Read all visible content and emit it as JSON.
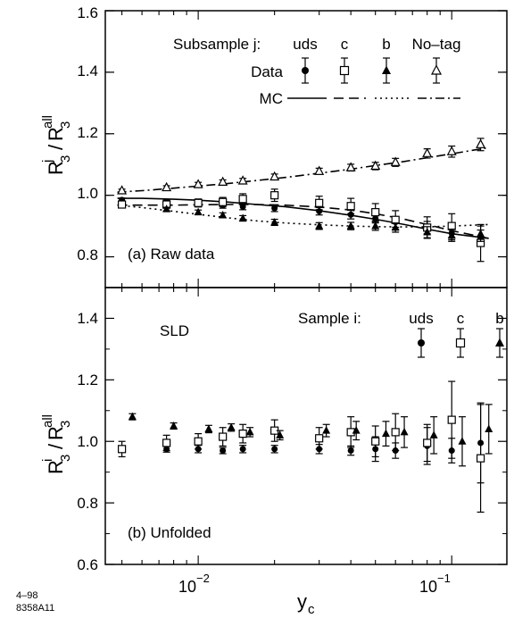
{
  "page": {
    "figure_id_line1": "4–98",
    "figure_id_line2": "8358A11"
  },
  "chart_data": [
    {
      "type": "scatter",
      "panel_label": "(a)  Raw data",
      "ylabel_main": "R",
      "ylabel_num_sup": "j",
      "ylabel_num_sub": "3",
      "ylabel_den_sup": "all",
      "ylabel_den_sub": "3",
      "xscale": "log",
      "xlim": [
        0.0043,
        0.165
      ],
      "ylim": [
        0.7,
        1.6
      ],
      "y_ticks": [
        "0.8",
        "1.0",
        "1.2",
        "1.4",
        "1.6"
      ],
      "legend": {
        "header": "Subsample j:",
        "columns": [
          "uds",
          "c",
          "b",
          "No–tag"
        ],
        "data_label": "Data",
        "mc_label": "MC"
      },
      "series": [
        {
          "name": "uds",
          "marker": "filled-circle",
          "x": [
            0.005,
            0.0075,
            0.01,
            0.0125,
            0.015,
            0.02,
            0.03,
            0.04,
            0.05,
            0.06,
            0.08,
            0.1,
            0.13
          ],
          "y": [
            0.985,
            0.978,
            0.975,
            0.967,
            0.963,
            0.958,
            0.948,
            0.937,
            0.925,
            0.913,
            0.895,
            0.877,
            0.862
          ],
          "err": [
            0.006,
            0.007,
            0.008,
            0.009,
            0.01,
            0.011,
            0.012,
            0.014,
            0.015,
            0.017,
            0.02,
            0.022,
            0.025
          ]
        },
        {
          "name": "c",
          "marker": "open-square",
          "x": [
            0.005,
            0.0075,
            0.01,
            0.0125,
            0.015,
            0.02,
            0.03,
            0.04,
            0.05,
            0.06,
            0.08,
            0.1,
            0.13
          ],
          "y": [
            0.97,
            0.97,
            0.975,
            0.978,
            0.988,
            1.0,
            0.975,
            0.965,
            0.945,
            0.92,
            0.895,
            0.9,
            0.845
          ],
          "err": [
            0.01,
            0.012,
            0.013,
            0.015,
            0.017,
            0.02,
            0.022,
            0.025,
            0.028,
            0.03,
            0.035,
            0.04,
            0.06
          ]
        },
        {
          "name": "b",
          "marker": "filled-triangle",
          "x": [
            0.0075,
            0.01,
            0.0125,
            0.015,
            0.02,
            0.03,
            0.04,
            0.05,
            0.06,
            0.08,
            0.1,
            0.13
          ],
          "y": [
            0.955,
            0.945,
            0.935,
            0.925,
            0.912,
            0.9,
            0.9,
            0.9,
            0.895,
            0.88,
            0.87,
            0.875
          ],
          "err": [
            0.006,
            0.007,
            0.008,
            0.009,
            0.01,
            0.011,
            0.012,
            0.014,
            0.015,
            0.018,
            0.02,
            0.025
          ]
        },
        {
          "name": "No–tag",
          "marker": "open-triangle",
          "x": [
            0.005,
            0.0075,
            0.01,
            0.0125,
            0.015,
            0.02,
            0.03,
            0.04,
            0.05,
            0.06,
            0.08,
            0.1,
            0.13
          ],
          "y": [
            1.015,
            1.025,
            1.035,
            1.043,
            1.047,
            1.06,
            1.078,
            1.09,
            1.095,
            1.107,
            1.136,
            1.142,
            1.165
          ],
          "err": [
            0.005,
            0.006,
            0.007,
            0.007,
            0.008,
            0.009,
            0.01,
            0.011,
            0.012,
            0.013,
            0.015,
            0.018,
            0.02
          ]
        }
      ],
      "mc_curves": [
        {
          "name": "uds",
          "style": "solid",
          "x": [
            0.0048,
            0.006,
            0.008,
            0.01,
            0.013,
            0.017,
            0.022,
            0.03,
            0.04,
            0.05,
            0.065,
            0.08,
            0.1,
            0.14
          ],
          "y": [
            0.99,
            0.99,
            0.987,
            0.984,
            0.978,
            0.97,
            0.963,
            0.95,
            0.935,
            0.922,
            0.905,
            0.89,
            0.875,
            0.86
          ]
        },
        {
          "name": "c",
          "style": "dashed",
          "x": [
            0.0048,
            0.006,
            0.008,
            0.01,
            0.013,
            0.017,
            0.022,
            0.03,
            0.04,
            0.05,
            0.065,
            0.08,
            0.1,
            0.14
          ],
          "y": [
            0.968,
            0.968,
            0.968,
            0.969,
            0.97,
            0.97,
            0.968,
            0.962,
            0.952,
            0.94,
            0.922,
            0.905,
            0.885,
            0.86
          ]
        },
        {
          "name": "b",
          "style": "dotted",
          "x": [
            0.0048,
            0.006,
            0.008,
            0.01,
            0.013,
            0.017,
            0.022,
            0.03,
            0.04,
            0.05,
            0.065,
            0.08,
            0.1,
            0.14
          ],
          "y": [
            0.968,
            0.96,
            0.948,
            0.938,
            0.927,
            0.917,
            0.91,
            0.904,
            0.9,
            0.898,
            0.897,
            0.897,
            0.9,
            0.905
          ]
        },
        {
          "name": "No–tag",
          "style": "dash-dot",
          "x": [
            0.0048,
            0.006,
            0.008,
            0.01,
            0.013,
            0.017,
            0.022,
            0.03,
            0.04,
            0.05,
            0.065,
            0.08,
            0.1,
            0.14
          ],
          "y": [
            1.01,
            1.015,
            1.023,
            1.03,
            1.038,
            1.048,
            1.058,
            1.072,
            1.085,
            1.097,
            1.11,
            1.122,
            1.135,
            1.155
          ]
        }
      ]
    },
    {
      "type": "scatter",
      "panel_label": "(b)  Unfolded",
      "corner_label": "SLD",
      "ylabel_main": "R",
      "ylabel_num_sup": "i",
      "ylabel_num_sub": "3",
      "ylabel_den_sup": "all",
      "ylabel_den_sub": "3",
      "xlabel_main": "y",
      "xlabel_sub": "c",
      "xscale": "log",
      "xlim": [
        0.0043,
        0.165
      ],
      "ylim": [
        0.6,
        1.5
      ],
      "y_ticks": [
        "0.6",
        "0.8",
        "1.0",
        "1.2",
        "1.4"
      ],
      "x_ticks": [
        {
          "value": 0.01,
          "base": "10",
          "exp": "−2"
        },
        {
          "value": 0.1,
          "base": "10",
          "exp": "−1"
        }
      ],
      "legend": {
        "header": "Sample i:",
        "columns": [
          "uds",
          "c",
          "b"
        ]
      },
      "series": [
        {
          "name": "uds",
          "marker": "filled-circle",
          "x": [
            0.0075,
            0.01,
            0.0125,
            0.015,
            0.02,
            0.03,
            0.04,
            0.05,
            0.06,
            0.08,
            0.1,
            0.13
          ],
          "y": [
            0.975,
            0.975,
            0.97,
            0.975,
            0.975,
            0.975,
            0.97,
            0.975,
            0.97,
            0.985,
            0.97,
            0.995
          ],
          "err": [
            0.01,
            0.012,
            0.01,
            0.012,
            0.012,
            0.015,
            0.015,
            0.04,
            0.025,
            0.06,
            0.04,
            0.13
          ]
        },
        {
          "name": "c",
          "marker": "open-square",
          "x": [
            0.005,
            0.0075,
            0.01,
            0.0125,
            0.015,
            0.02,
            0.03,
            0.04,
            0.05,
            0.06,
            0.08,
            0.1,
            0.13
          ],
          "y": [
            0.975,
            0.995,
            1.0,
            1.015,
            1.025,
            1.035,
            1.01,
            1.03,
            1.0,
            1.03,
            0.995,
            1.07,
            0.945
          ],
          "err": [
            0.025,
            0.025,
            0.025,
            0.03,
            0.03,
            0.035,
            0.035,
            0.05,
            0.05,
            0.06,
            0.06,
            0.125,
            0.175
          ]
        },
        {
          "name": "b",
          "marker": "filled-triangle",
          "x": [
            0.0055,
            0.008,
            0.011,
            0.0135,
            0.016,
            0.021,
            0.032,
            0.042,
            0.055,
            0.065,
            0.085,
            0.11,
            0.14
          ],
          "y": [
            1.08,
            1.05,
            1.04,
            1.045,
            1.03,
            1.02,
            1.035,
            1.035,
            1.025,
            1.03,
            1.02,
            1.0,
            1.04
          ],
          "err": [
            0.01,
            0.01,
            0.012,
            0.012,
            0.015,
            0.015,
            0.02,
            0.03,
            0.04,
            0.05,
            0.06,
            0.08,
            0.08
          ]
        }
      ]
    }
  ]
}
